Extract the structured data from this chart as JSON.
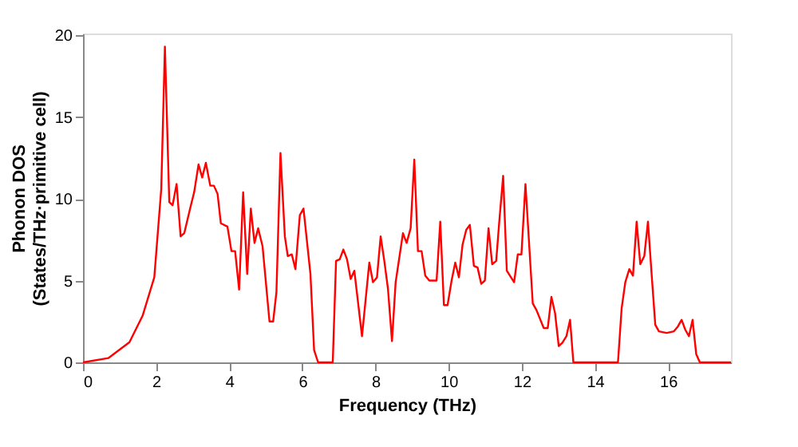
{
  "chart_data": {
    "type": "line",
    "xlabel": "Frequency (THz)",
    "ylabel": "Phonon DOS\n(States/THz·primitive cell)",
    "x": [
      0,
      0.69,
      1.27,
      1.63,
      1.95,
      2.14,
      2.24,
      2.36,
      2.45,
      2.56,
      2.67,
      2.77,
      2.94,
      3.04,
      3.16,
      3.26,
      3.36,
      3.48,
      3.58,
      3.68,
      3.77,
      3.95,
      4.06,
      4.16,
      4.27,
      4.38,
      4.49,
      4.59,
      4.69,
      4.79,
      4.91,
      5.1,
      5.2,
      5.29,
      5.4,
      5.52,
      5.6,
      5.71,
      5.81,
      5.93,
      6.03,
      6.22,
      6.32,
      6.43,
      6.83,
      6.92,
      7.02,
      7.12,
      7.22,
      7.32,
      7.42,
      7.63,
      7.83,
      7.93,
      8.04,
      8.14,
      8.24,
      8.34,
      8.45,
      8.55,
      8.75,
      8.85,
      8.96,
      9.06,
      9.16,
      9.26,
      9.36,
      9.47,
      9.67,
      9.77,
      9.87,
      9.97,
      10.08,
      10.18,
      10.28,
      10.38,
      10.48,
      10.58,
      10.69,
      10.79,
      10.89,
      10.99,
      11.09,
      11.19,
      11.3,
      11.38,
      11.49,
      11.59,
      11.79,
      11.89,
      11.99,
      12.1,
      12.3,
      12.4,
      12.6,
      12.71,
      12.81,
      12.91,
      13.01,
      13.11,
      13.22,
      13.32,
      13.41,
      14.63,
      14.73,
      14.83,
      14.94,
      15.04,
      15.14,
      15.24,
      15.35,
      15.45,
      15.55,
      15.65,
      15.75,
      15.96,
      16.16,
      16.27,
      16.37,
      16.47,
      16.57,
      16.67,
      16.77,
      16.87,
      17.72
    ],
    "series": [
      {
        "color": "#ff0000",
        "values": [
          0,
          0.26,
          1.23,
          2.85,
          5.2,
          10.6,
          19.3,
          9.8,
          9.6,
          10.9,
          7.7,
          7.9,
          9.5,
          10.4,
          12.1,
          11.3,
          12.2,
          10.8,
          10.8,
          10.3,
          8.5,
          8.3,
          6.8,
          6.8,
          4.45,
          10.4,
          5.4,
          9.4,
          7.3,
          8.2,
          7.1,
          2.5,
          2.5,
          4.3,
          12.8,
          7.7,
          6.5,
          6.6,
          5.7,
          9.0,
          9.4,
          5.4,
          0.75,
          0,
          0,
          6.2,
          6.3,
          6.9,
          6.3,
          5.1,
          5.6,
          1.6,
          6.1,
          4.9,
          5.2,
          7.7,
          6.2,
          4.5,
          1.3,
          4.9,
          7.9,
          7.3,
          8.2,
          12.4,
          6.8,
          6.8,
          5.3,
          5.0,
          5.0,
          8.6,
          3.5,
          3.5,
          5.0,
          6.1,
          5.2,
          7.2,
          8.1,
          8.4,
          5.9,
          5.8,
          4.8,
          5.0,
          8.2,
          6.0,
          6.2,
          8.5,
          11.4,
          5.6,
          4.9,
          6.6,
          6.6,
          10.9,
          3.6,
          3.2,
          2.1,
          2.1,
          4.0,
          3.0,
          1.0,
          1.2,
          1.6,
          2.6,
          0,
          0,
          3.3,
          4.9,
          5.7,
          5.3,
          8.6,
          6.0,
          6.5,
          8.6,
          5.4,
          2.3,
          1.9,
          1.8,
          1.9,
          2.2,
          2.6,
          2.0,
          1.6,
          2.6,
          0.5,
          0,
          0
        ]
      }
    ],
    "xlim": [
      0,
      17.72
    ],
    "ylim": [
      0,
      20.1
    ],
    "xticks": [
      0,
      2,
      4,
      6,
      8,
      10,
      12,
      14,
      16
    ],
    "yticks": [
      0,
      5,
      10,
      15,
      20
    ],
    "grid": false,
    "legend": false,
    "line_style": "solid",
    "marker": "none"
  }
}
